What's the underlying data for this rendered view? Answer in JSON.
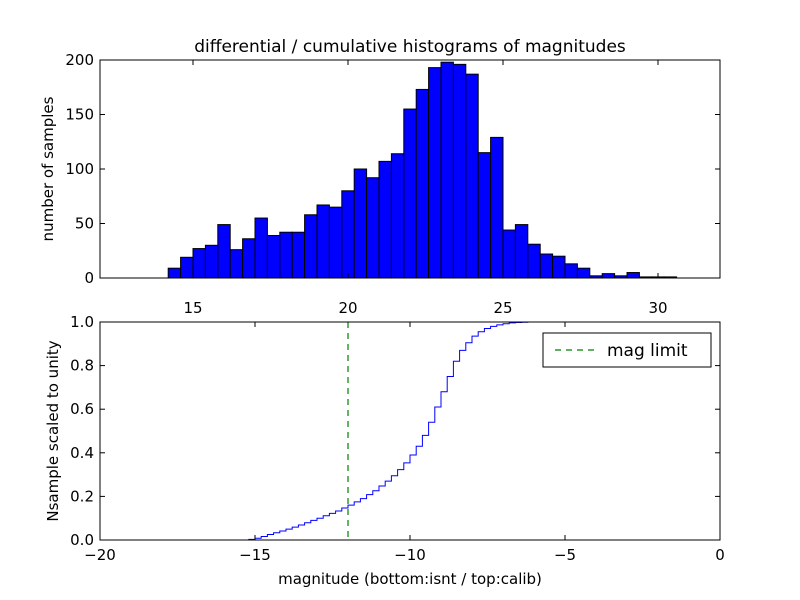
{
  "chart_data": [
    {
      "type": "bar",
      "title": "differential / cumulative histograms of magnitudes",
      "xlabel": "",
      "ylabel": "number of samples",
      "xlim": [
        12,
        32
      ],
      "ylim": [
        0,
        200
      ],
      "xticks": [
        15,
        20,
        25,
        30
      ],
      "xtick_labels": [
        "15",
        "20",
        "25",
        "30"
      ],
      "yticks": [
        0,
        50,
        100,
        150,
        200
      ],
      "ytick_labels": [
        "0",
        "50",
        "100",
        "150",
        "200"
      ],
      "bar_color": "#0000ff",
      "bins": {
        "start": 14.2,
        "width": 0.4,
        "counts": [
          9,
          19,
          27,
          30,
          49,
          26,
          36,
          55,
          39,
          42,
          42,
          58,
          67,
          65,
          80,
          100,
          92,
          107,
          114,
          155,
          173,
          193,
          198,
          196,
          187,
          115,
          129,
          44,
          49,
          31,
          22,
          20,
          13,
          9,
          2,
          4,
          2,
          5,
          1,
          1,
          1
        ]
      }
    },
    {
      "type": "line",
      "xlabel": "magnitude (bottom:isnt / top:calib)",
      "ylabel": "Nsample scaled to unity",
      "xlim": [
        -20,
        0
      ],
      "ylim": [
        0.0,
        1.0
      ],
      "xticks": [
        -20,
        -15,
        -10,
        -5,
        0
      ],
      "xtick_labels": [
        "−20",
        "−15",
        "−10",
        "−5",
        "0"
      ],
      "yticks": [
        0.0,
        0.2,
        0.4,
        0.6,
        0.8,
        1.0
      ],
      "ytick_labels": [
        "0.0",
        "0.2",
        "0.4",
        "0.6",
        "0.8",
        "1.0"
      ],
      "step_color": "#0000ff",
      "steps": {
        "start": -15.2,
        "width": 0.2,
        "values": [
          0.003,
          0.008,
          0.016,
          0.025,
          0.033,
          0.041,
          0.05,
          0.059,
          0.069,
          0.079,
          0.09,
          0.1,
          0.111,
          0.122,
          0.133,
          0.147,
          0.16,
          0.175,
          0.19,
          0.208,
          0.226,
          0.248,
          0.27,
          0.295,
          0.323,
          0.354,
          0.39,
          0.43,
          0.48,
          0.54,
          0.61,
          0.68,
          0.75,
          0.82,
          0.87,
          0.905,
          0.935,
          0.955,
          0.97,
          0.98,
          0.987,
          0.992,
          0.996,
          0.998,
          0.999,
          1.0
        ]
      },
      "vline": {
        "x": -12,
        "label": "mag limit",
        "color": "#008000",
        "style": "dashed"
      },
      "legend": {
        "position": "top-right",
        "entries": [
          "mag limit"
        ]
      }
    }
  ]
}
